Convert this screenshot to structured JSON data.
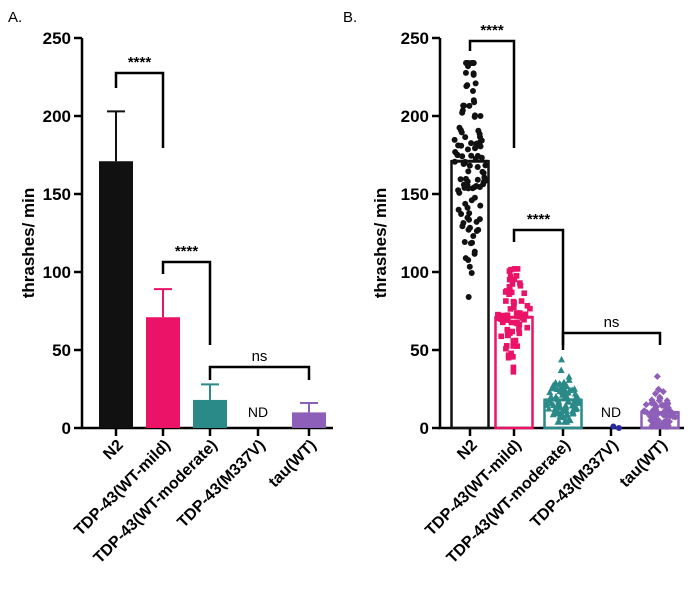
{
  "chart_data": [
    {
      "panel": "A.",
      "type": "bar",
      "style": "filled bars with SD error bars",
      "ylabel": "thrashes/ min",
      "ylim": [
        0,
        250
      ],
      "yticks": [
        0,
        50,
        100,
        150,
        200,
        250
      ],
      "categories": [
        "N2",
        "TDP-43(WT-mild)",
        "TDP-43(WT-moderate)",
        "TDP-43(M337V)",
        "tau(WT)"
      ],
      "values": [
        171,
        71,
        18,
        null,
        10
      ],
      "errors": [
        32,
        18,
        10,
        null,
        6
      ],
      "colors": [
        "#111111",
        "#ea1367",
        "#2a8a88",
        "#888888",
        "#8e5fb8"
      ],
      "value_labels": [
        null,
        null,
        null,
        "ND",
        null
      ],
      "significance": [
        {
          "from": 0,
          "to": 1,
          "label": "****"
        },
        {
          "from": 1,
          "to": 2,
          "label": "****"
        },
        {
          "from": 2,
          "to": 4,
          "label": "ns"
        }
      ]
    },
    {
      "panel": "B.",
      "type": "bar",
      "style": "open bars with individual data points",
      "ylabel": "thrashes/ min",
      "ylim": [
        0,
        250
      ],
      "yticks": [
        0,
        50,
        100,
        150,
        200,
        250
      ],
      "categories": [
        "N2",
        "TDP-43(WT-mild)",
        "TDP-43(WT-moderate)",
        "TDP-43(M337V)",
        "tau(WT)"
      ],
      "values": [
        171,
        71,
        18,
        0,
        10
      ],
      "points": {
        "N2": {
          "n": 110,
          "min": 84,
          "max": 234
        },
        "TDP-43(WT-mild)": {
          "n": 75,
          "min": 36,
          "max": 102
        },
        "TDP-43(WT-moderate)": {
          "n": 90,
          "min": 4,
          "max": 44
        },
        "TDP-43(M337V)": {
          "n": 2,
          "min": 0,
          "max": 1
        },
        "tau(WT)": {
          "n": 65,
          "min": 1,
          "max": 33
        }
      },
      "colors": [
        "#111111",
        "#ea1367",
        "#2a8a88",
        "#2a2aa0",
        "#8e5fb8"
      ],
      "value_labels": [
        null,
        null,
        null,
        "ND",
        null
      ],
      "significance": [
        {
          "from": 0,
          "to": 1,
          "label": "****"
        },
        {
          "from": 1,
          "to": 2,
          "label": "****"
        },
        {
          "from": 2,
          "to": 4,
          "label": "ns"
        }
      ]
    }
  ]
}
